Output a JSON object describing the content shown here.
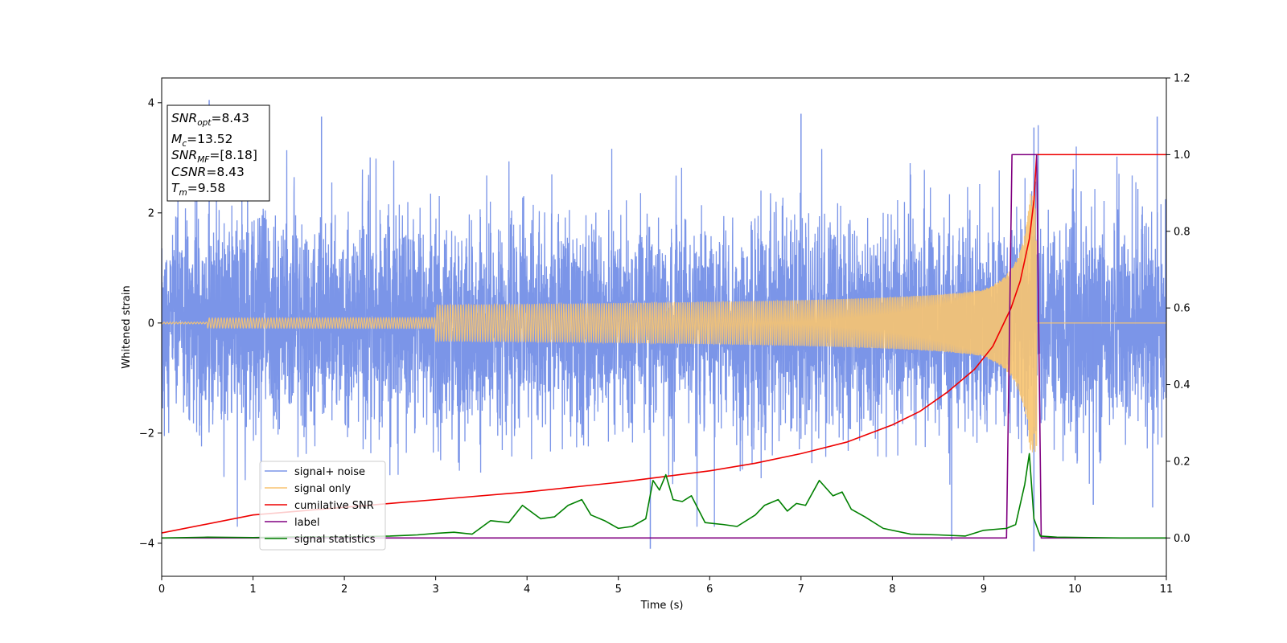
{
  "chart_data": {
    "type": "line",
    "xlabel": "Time (s)",
    "ylabel": "Whitened strain",
    "xlim": [
      0,
      11
    ],
    "ylim": [
      -4.6,
      4.45
    ],
    "y2lim": [
      -0.1,
      1.2
    ],
    "x_ticks": [
      "0",
      "1",
      "2",
      "3",
      "4",
      "5",
      "6",
      "7",
      "8",
      "9",
      "10",
      "11"
    ],
    "y_ticks": [
      "-4",
      "-2",
      "0",
      "2",
      "4"
    ],
    "y2_ticks": [
      "0.0",
      "0.2",
      "0.4",
      "0.6",
      "0.8",
      "1.0",
      "1.2"
    ],
    "grid": false,
    "legend_position": "lower-left",
    "info_box": {
      "snr_opt": "8.43",
      "mc": "13.52",
      "snr_mf": "[8.18]",
      "csnr": "8.43",
      "tm": "9.58"
    },
    "series": [
      {
        "name": "signal+ noise",
        "color": "#7b95e8",
        "axis": "left",
        "description_values": {
          "noise_std": 0.95,
          "t_end": 11
        },
        "spikes": [
          {
            "x": 0.52,
            "y": 4.05
          },
          {
            "x": 5.35,
            "y": -4.1
          },
          {
            "x": 8.65,
            "y": -3.95
          },
          {
            "x": 9.55,
            "y": -4.15
          },
          {
            "x": 9.55,
            "y": 3.55
          },
          {
            "x": 10.9,
            "y": 3.75
          },
          {
            "x": 10.2,
            "y": -3.3
          },
          {
            "x": 10.85,
            "y": -3.35
          },
          {
            "x": 1.75,
            "y": 3.75
          },
          {
            "x": 7.0,
            "y": 3.8
          }
        ]
      },
      {
        "name": "signal only",
        "color": "#f8c470",
        "axis": "left",
        "merger_time": 9.58,
        "peak_amplitude": 2.35
      },
      {
        "name": "cumilative SNR",
        "color": "#ee0000",
        "axis": "right",
        "x": [
          0,
          1,
          2,
          3,
          4,
          5,
          6,
          6.5,
          7,
          7.5,
          8,
          8.3,
          8.6,
          8.9,
          9.1,
          9.3,
          9.4,
          9.5,
          9.55,
          9.58,
          11
        ],
        "values": [
          0.013,
          0.06,
          0.08,
          0.1,
          0.12,
          0.145,
          0.175,
          0.195,
          0.22,
          0.25,
          0.295,
          0.33,
          0.38,
          0.44,
          0.5,
          0.6,
          0.67,
          0.78,
          0.88,
          1.0,
          1.0
        ]
      },
      {
        "name": "label",
        "color": "#800080",
        "axis": "right",
        "x": [
          0,
          9.25,
          9.31,
          9.58,
          9.63,
          11
        ],
        "values": [
          0,
          0,
          1,
          1,
          0,
          0
        ]
      },
      {
        "name": "signal statistics",
        "color": "#008000",
        "axis": "right",
        "x": [
          0,
          0.5,
          1.0,
          1.5,
          2.0,
          2.5,
          2.8,
          3.0,
          3.2,
          3.4,
          3.6,
          3.8,
          3.95,
          4.15,
          4.3,
          4.45,
          4.6,
          4.7,
          4.85,
          5.0,
          5.15,
          5.3,
          5.38,
          5.45,
          5.52,
          5.6,
          5.7,
          5.8,
          5.95,
          6.15,
          6.3,
          6.5,
          6.6,
          6.75,
          6.85,
          6.95,
          7.05,
          7.2,
          7.35,
          7.45,
          7.55,
          7.7,
          7.9,
          8.2,
          8.5,
          8.8,
          9.0,
          9.25,
          9.35,
          9.45,
          9.5,
          9.55,
          9.62,
          9.8,
          10.5,
          11
        ],
        "values": [
          0.0,
          0.002,
          0.001,
          0.003,
          0.003,
          0.005,
          0.008,
          0.012,
          0.015,
          0.01,
          0.045,
          0.04,
          0.085,
          0.05,
          0.055,
          0.085,
          0.1,
          0.06,
          0.045,
          0.025,
          0.03,
          0.05,
          0.15,
          0.125,
          0.165,
          0.1,
          0.095,
          0.11,
          0.04,
          0.035,
          0.03,
          0.06,
          0.085,
          0.1,
          0.07,
          0.09,
          0.085,
          0.15,
          0.11,
          0.12,
          0.075,
          0.055,
          0.025,
          0.01,
          0.008,
          0.005,
          0.02,
          0.025,
          0.035,
          0.14,
          0.22,
          0.05,
          0.005,
          0.002,
          0.0,
          0.0
        ]
      }
    ]
  }
}
